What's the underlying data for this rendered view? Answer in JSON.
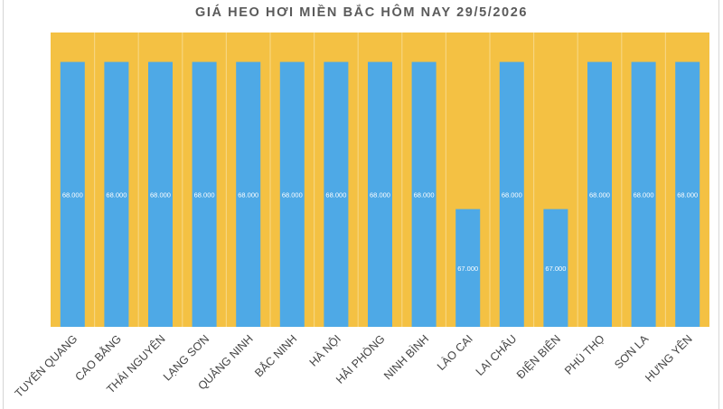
{
  "chart_data": {
    "type": "bar",
    "title": "GIÁ HEO HƠI MIỀN BẮC HÔM NAY 29/5/2026",
    "categories": [
      "TUYÊN QUANG",
      "CAO BẰNG",
      "THÁI NGUYÊN",
      "LẠNG SƠN",
      "QUẢNG NINH",
      "BẮC NINH",
      "HÀ NỘI",
      "HẢI PHÒNG",
      "NINH BÌNH",
      "LÀO CAI",
      "LAI CHÂU",
      "ĐIỆN BIÊN",
      "PHÚ THỌ",
      "SƠN LA",
      "HƯNG YÊN"
    ],
    "values": [
      68000,
      68000,
      68000,
      68000,
      68000,
      68000,
      68000,
      68000,
      68000,
      67000,
      68000,
      67000,
      68000,
      68000,
      68000
    ],
    "data_labels": [
      "68.000",
      "68.000",
      "68.000",
      "68.000",
      "68.000",
      "68.000",
      "68.000",
      "68.000",
      "68.000",
      "67.000",
      "68.000",
      "67.000",
      "68.000",
      "68.000",
      "68.000"
    ],
    "ylim": [
      66200,
      68200
    ],
    "xlabel": "",
    "ylabel": "",
    "grid": false,
    "legend": "none",
    "colors": {
      "bar": "#4ea9e6",
      "plot_background": "#f4c143",
      "category_separator": "#f7d57e",
      "title": "#5a5a5a",
      "axis_label": "#444444",
      "data_label": "#ffffff"
    }
  }
}
